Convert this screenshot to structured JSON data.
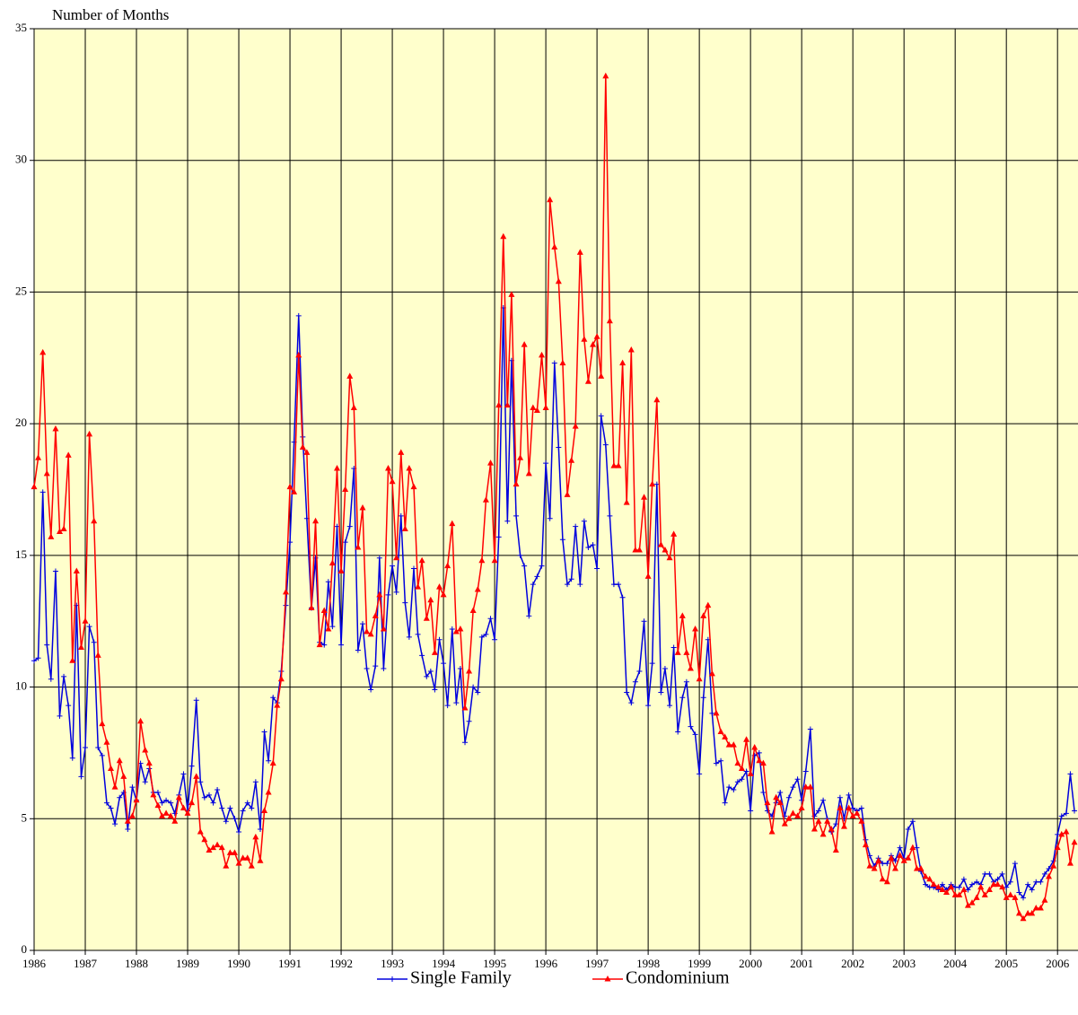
{
  "chart_data": {
    "type": "line",
    "ylabel": "Number of Months",
    "x": [
      1986,
      1986.08,
      1986.17,
      1986.25,
      1986.33,
      1986.42,
      1986.5,
      1986.58,
      1986.67,
      1986.75,
      1986.83,
      1986.92,
      1987,
      1987.08,
      1987.17,
      1987.25,
      1987.33,
      1987.42,
      1987.5,
      1987.58,
      1987.67,
      1987.75,
      1987.83,
      1987.92,
      1988,
      1988.08,
      1988.17,
      1988.25,
      1988.33,
      1988.42,
      1988.5,
      1988.58,
      1988.67,
      1988.75,
      1988.83,
      1988.92,
      1989,
      1989.08,
      1989.17,
      1989.25,
      1989.33,
      1989.42,
      1989.5,
      1989.58,
      1989.67,
      1989.75,
      1989.83,
      1989.92,
      1990,
      1990.08,
      1990.17,
      1990.25,
      1990.33,
      1990.42,
      1990.5,
      1990.58,
      1990.67,
      1990.75,
      1990.83,
      1990.92,
      1991,
      1991.08,
      1991.17,
      1991.25,
      1991.33,
      1991.42,
      1991.5,
      1991.58,
      1991.67,
      1991.75,
      1991.83,
      1991.92,
      1992,
      1992.08,
      1992.17,
      1992.25,
      1992.33,
      1992.42,
      1992.5,
      1992.58,
      1992.67,
      1992.75,
      1992.83,
      1992.92,
      1993,
      1993.08,
      1993.17,
      1993.25,
      1993.33,
      1993.42,
      1993.5,
      1993.58,
      1993.67,
      1993.75,
      1993.83,
      1993.92,
      1994,
      1994.08,
      1994.17,
      1994.25,
      1994.33,
      1994.42,
      1994.5,
      1994.58,
      1994.67,
      1994.75,
      1994.83,
      1994.92,
      1995,
      1995.08,
      1995.17,
      1995.25,
      1995.33,
      1995.42,
      1995.5,
      1995.58,
      1995.67,
      1995.75,
      1995.83,
      1995.92,
      1996,
      1996.08,
      1996.17,
      1996.25,
      1996.33,
      1996.42,
      1996.5,
      1996.58,
      1996.67,
      1996.75,
      1996.83,
      1996.92,
      1997,
      1997.08,
      1997.17,
      1997.25,
      1997.33,
      1997.42,
      1997.5,
      1997.58,
      1997.67,
      1997.75,
      1997.83,
      1997.92,
      1998,
      1998.08,
      1998.17,
      1998.25,
      1998.33,
      1998.42,
      1998.5,
      1998.58,
      1998.67,
      1998.75,
      1998.83,
      1998.92,
      1999,
      1999.08,
      1999.17,
      1999.25,
      1999.33,
      1999.42,
      1999.5,
      1999.58,
      1999.67,
      1999.75,
      1999.83,
      1999.92,
      2000,
      2000.08,
      2000.17,
      2000.25,
      2000.33,
      2000.42,
      2000.5,
      2000.58,
      2000.67,
      2000.75,
      2000.83,
      2000.92,
      2001,
      2001.08,
      2001.17,
      2001.25,
      2001.33,
      2001.42,
      2001.5,
      2001.58,
      2001.67,
      2001.75,
      2001.83,
      2001.92,
      2002,
      2002.08,
      2002.17,
      2002.25,
      2002.33,
      2002.42,
      2002.5,
      2002.58,
      2002.67,
      2002.75,
      2002.83,
      2002.92,
      2003,
      2003.08,
      2003.17,
      2003.25,
      2003.33,
      2003.42,
      2003.5,
      2003.58,
      2003.67,
      2003.75,
      2003.83,
      2003.92,
      2004,
      2004.08,
      2004.17,
      2004.25,
      2004.33,
      2004.42,
      2004.5,
      2004.58,
      2004.67,
      2004.75,
      2004.83,
      2004.92,
      2005,
      2005.08,
      2005.17,
      2005.25,
      2005.33,
      2005.42,
      2005.5,
      2005.58,
      2005.67,
      2005.75,
      2005.83,
      2005.92,
      2006,
      2006.08,
      2006.17,
      2006.25,
      2006.33
    ],
    "series": [
      {
        "name": "Single Family",
        "color": "#0000dd",
        "marker": "plus",
        "values": [
          11.0,
          11.1,
          17.4,
          11.6,
          10.3,
          14.4,
          8.9,
          10.4,
          9.3,
          7.3,
          13.1,
          6.6,
          7.7,
          12.3,
          11.7,
          7.7,
          7.4,
          5.6,
          5.4,
          4.8,
          5.8,
          6.0,
          4.6,
          6.2,
          5.7,
          7.1,
          6.4,
          6.9,
          6.0,
          6.0,
          5.6,
          5.7,
          5.6,
          5.2,
          5.9,
          6.7,
          5.3,
          7.0,
          9.5,
          6.4,
          5.8,
          5.9,
          5.6,
          6.1,
          5.4,
          4.9,
          5.4,
          5.0,
          4.5,
          5.3,
          5.6,
          5.4,
          6.4,
          4.6,
          8.3,
          7.2,
          9.6,
          9.4,
          10.6,
          13.1,
          15.5,
          19.3,
          24.1,
          19.5,
          16.4,
          13.0,
          14.9,
          11.7,
          11.6,
          14.0,
          12.3,
          16.1,
          11.6,
          15.5,
          16.1,
          18.3,
          11.4,
          12.4,
          10.7,
          9.9,
          10.8,
          14.9,
          10.7,
          13.5,
          14.6,
          13.6,
          16.5,
          13.2,
          11.9,
          14.5,
          12.0,
          11.2,
          10.4,
          10.6,
          9.9,
          11.8,
          10.9,
          9.3,
          12.2,
          9.4,
          10.7,
          7.9,
          8.7,
          10.0,
          9.8,
          11.9,
          12.0,
          12.6,
          11.8,
          15.7,
          24.4,
          16.3,
          22.4,
          16.5,
          15.0,
          14.6,
          12.7,
          13.9,
          14.2,
          14.6,
          18.5,
          16.4,
          22.3,
          19.1,
          15.6,
          13.9,
          14.1,
          16.1,
          13.9,
          16.3,
          15.3,
          15.4,
          14.5,
          20.3,
          19.2,
          16.5,
          13.9,
          13.9,
          13.4,
          9.8,
          9.4,
          10.2,
          10.6,
          12.5,
          9.3,
          10.9,
          17.7,
          9.8,
          10.7,
          9.3,
          11.5,
          8.3,
          9.6,
          10.2,
          8.5,
          8.2,
          6.7,
          9.6,
          11.8,
          9.0,
          7.1,
          7.2,
          5.6,
          6.2,
          6.1,
          6.4,
          6.5,
          6.8,
          5.3,
          7.4,
          7.5,
          6.0,
          5.3,
          5.1,
          5.6,
          6.0,
          5.1,
          5.8,
          6.2,
          6.5,
          5.7,
          6.8,
          8.4,
          5.1,
          5.3,
          5.7,
          5.0,
          4.5,
          4.8,
          5.8,
          5.0,
          5.9,
          5.4,
          5.3,
          5.4,
          4.2,
          3.6,
          3.2,
          3.5,
          3.3,
          3.3,
          3.6,
          3.4,
          3.9,
          3.5,
          4.6,
          4.9,
          3.9,
          3.0,
          2.5,
          2.4,
          2.4,
          2.3,
          2.5,
          2.3,
          2.5,
          2.4,
          2.4,
          2.7,
          2.3,
          2.5,
          2.6,
          2.5,
          2.9,
          2.9,
          2.6,
          2.7,
          2.9,
          2.4,
          2.6,
          3.3,
          2.2,
          2.0,
          2.5,
          2.3,
          2.6,
          2.6,
          2.9,
          3.1,
          3.4,
          4.4,
          5.1,
          5.2,
          6.7,
          5.3
        ]
      },
      {
        "name": "Condominium",
        "color": "#ff0000",
        "marker": "triangle",
        "values": [
          17.6,
          18.7,
          22.7,
          18.1,
          15.7,
          19.8,
          15.9,
          16.0,
          18.8,
          11.0,
          14.4,
          11.5,
          12.5,
          19.6,
          16.3,
          11.2,
          8.6,
          7.9,
          6.9,
          6.2,
          7.2,
          6.6,
          4.9,
          5.1,
          5.7,
          8.7,
          7.6,
          7.1,
          5.9,
          5.5,
          5.1,
          5.2,
          5.1,
          4.9,
          5.8,
          5.4,
          5.2,
          5.6,
          6.6,
          4.5,
          4.2,
          3.8,
          3.9,
          4.0,
          3.9,
          3.2,
          3.7,
          3.7,
          3.3,
          3.5,
          3.5,
          3.2,
          4.3,
          3.4,
          5.3,
          6.0,
          7.1,
          9.3,
          10.3,
          13.6,
          17.6,
          17.4,
          22.6,
          19.1,
          18.9,
          13.0,
          16.3,
          11.6,
          12.9,
          12.2,
          14.7,
          18.3,
          14.4,
          17.5,
          21.8,
          20.6,
          15.3,
          16.8,
          12.1,
          12.0,
          12.7,
          13.5,
          12.2,
          18.3,
          17.8,
          14.9,
          18.9,
          16.0,
          18.3,
          17.6,
          13.8,
          14.8,
          12.6,
          13.3,
          11.3,
          13.8,
          13.5,
          14.6,
          16.2,
          12.1,
          12.2,
          9.2,
          10.6,
          12.9,
          13.7,
          14.8,
          17.1,
          18.5,
          14.8,
          20.7,
          27.1,
          20.7,
          24.9,
          17.7,
          18.7,
          23.0,
          18.1,
          20.6,
          20.5,
          22.6,
          20.6,
          28.5,
          26.7,
          25.4,
          22.3,
          17.3,
          18.6,
          19.9,
          26.5,
          23.2,
          21.6,
          23.0,
          23.3,
          21.8,
          33.2,
          23.9,
          18.4,
          18.4,
          22.3,
          17.0,
          22.8,
          15.2,
          15.2,
          17.2,
          14.2,
          17.7,
          20.9,
          15.4,
          15.2,
          14.9,
          15.8,
          11.3,
          12.7,
          11.3,
          10.7,
          12.2,
          10.3,
          12.7,
          13.1,
          10.5,
          9.0,
          8.3,
          8.1,
          7.8,
          7.8,
          7.1,
          6.9,
          8.0,
          6.7,
          7.7,
          7.2,
          7.1,
          5.6,
          4.5,
          5.8,
          5.6,
          4.8,
          5.0,
          5.2,
          5.1,
          5.4,
          6.2,
          6.2,
          4.6,
          4.9,
          4.4,
          4.9,
          4.6,
          3.8,
          5.4,
          4.7,
          5.4,
          5.1,
          5.2,
          4.9,
          4.0,
          3.2,
          3.1,
          3.4,
          2.7,
          2.6,
          3.5,
          3.1,
          3.6,
          3.4,
          3.5,
          3.9,
          3.1,
          3.1,
          2.8,
          2.7,
          2.5,
          2.4,
          2.3,
          2.2,
          2.4,
          2.1,
          2.1,
          2.3,
          1.7,
          1.8,
          2.0,
          2.4,
          2.1,
          2.3,
          2.5,
          2.5,
          2.4,
          2.0,
          2.1,
          2.0,
          1.4,
          1.2,
          1.4,
          1.4,
          1.6,
          1.6,
          1.9,
          2.8,
          3.2,
          3.9,
          4.4,
          4.5,
          3.3,
          4.1
        ]
      }
    ],
    "xlim": [
      1986,
      2006.4
    ],
    "xticks": [
      1986,
      1987,
      1988,
      1989,
      1990,
      1991,
      1992,
      1993,
      1994,
      1995,
      1996,
      1997,
      1998,
      1999,
      2000,
      2001,
      2002,
      2003,
      2004,
      2005,
      2006
    ],
    "ylim": [
      0,
      35
    ],
    "yticks": [
      0,
      5,
      10,
      15,
      20,
      25,
      30,
      35
    ],
    "grid": true,
    "legend": "bottom",
    "background": "#ffffcc"
  }
}
